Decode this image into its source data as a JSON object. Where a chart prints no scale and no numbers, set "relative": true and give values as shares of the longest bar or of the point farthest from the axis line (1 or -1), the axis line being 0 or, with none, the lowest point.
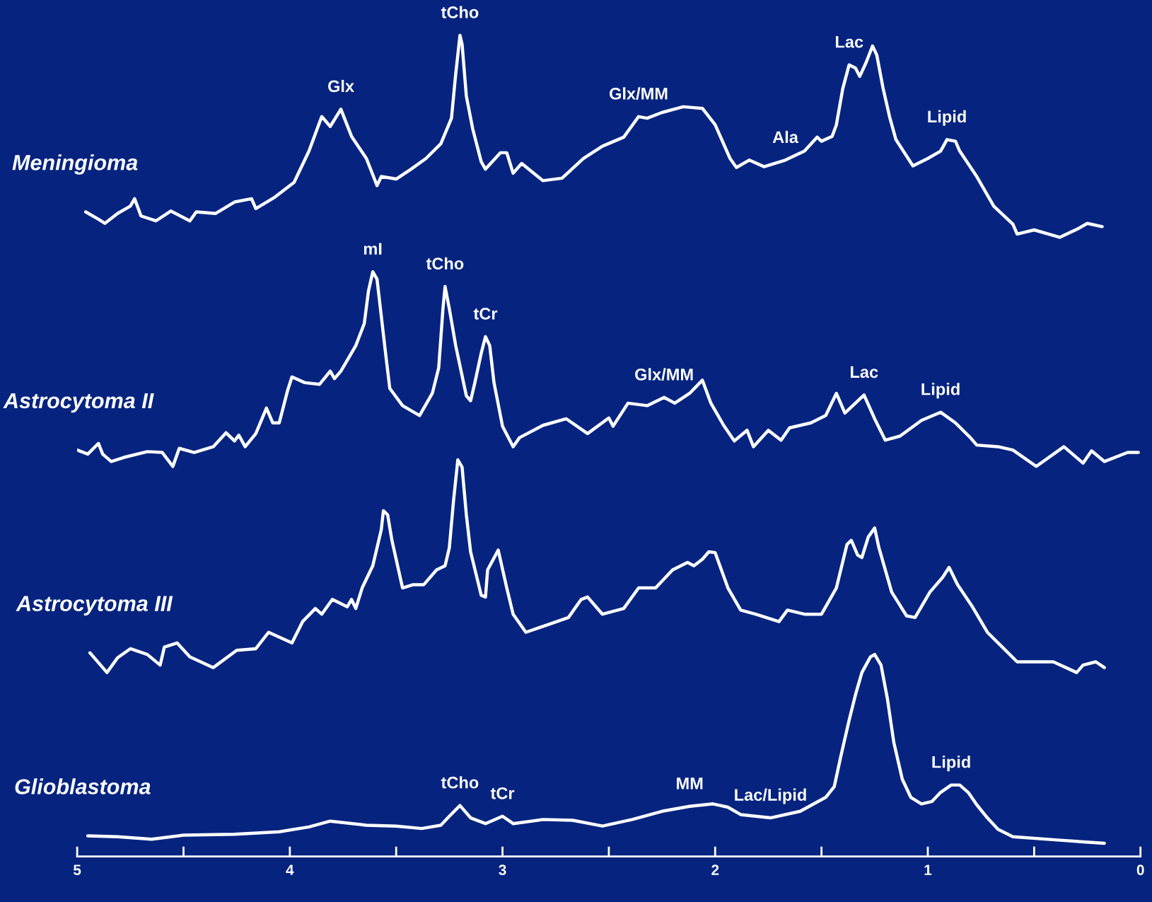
{
  "chart_data": {
    "type": "line",
    "relative": true,
    "line_style": "solid",
    "marker": "none",
    "grid": false,
    "legend": false,
    "xlim": [
      5,
      0
    ],
    "xticks": [
      5,
      {
        "value": 4.5,
        "label": null
      },
      4,
      {
        "value": 3.5,
        "label": null
      },
      3,
      {
        "value": 2.5,
        "label": null
      },
      2,
      {
        "value": 1.5,
        "label": null
      },
      1,
      {
        "value": 0.5,
        "label": null
      },
      0
    ],
    "series": [
      {
        "name": "Meningioma",
        "color": "#ffffff",
        "x": [
          4.96,
          4.9,
          4.87,
          4.81,
          4.75,
          4.73,
          4.7,
          4.63,
          4.56,
          4.47,
          4.44,
          4.35,
          4.26,
          4.18,
          4.16,
          4.07,
          3.98,
          3.91,
          3.85,
          3.81,
          3.76,
          3.71,
          3.64,
          3.59,
          3.57,
          3.5,
          3.43,
          3.36,
          3.29,
          3.24,
          3.22,
          3.2,
          3.19,
          3.17,
          3.14,
          3.1,
          3.08,
          3.01,
          2.98,
          2.95,
          2.91,
          2.81,
          2.72,
          2.62,
          2.53,
          2.43,
          2.36,
          2.32,
          2.25,
          2.15,
          2.06,
          2.0,
          1.93,
          1.9,
          1.84,
          1.77,
          1.67,
          1.58,
          1.52,
          1.5,
          1.45,
          1.43,
          1.4,
          1.37,
          1.34,
          1.32,
          1.29,
          1.26,
          1.24,
          1.21,
          1.18,
          1.15,
          1.07,
          1.0,
          0.94,
          0.91,
          0.87,
          0.85,
          0.77,
          0.69,
          0.6,
          0.58,
          0.5,
          0.38,
          0.29,
          0.25,
          0.18
        ],
        "values": [
          0.785,
          0.776,
          0.771,
          0.783,
          0.792,
          0.801,
          0.78,
          0.774,
          0.786,
          0.774,
          0.785,
          0.783,
          0.797,
          0.801,
          0.789,
          0.803,
          0.821,
          0.859,
          0.901,
          0.889,
          0.91,
          0.877,
          0.85,
          0.817,
          0.828,
          0.825,
          0.837,
          0.85,
          0.868,
          0.899,
          0.953,
          1,
          0.989,
          0.926,
          0.886,
          0.846,
          0.837,
          0.857,
          0.857,
          0.832,
          0.844,
          0.823,
          0.826,
          0.85,
          0.865,
          0.876,
          0.901,
          0.899,
          0.906,
          0.913,
          0.911,
          0.891,
          0.85,
          0.839,
          0.848,
          0.84,
          0.848,
          0.859,
          0.876,
          0.871,
          0.877,
          0.891,
          0.935,
          0.964,
          0.96,
          0.95,
          0.967,
          0.987,
          0.976,
          0.935,
          0.901,
          0.873,
          0.841,
          0.85,
          0.859,
          0.873,
          0.871,
          0.859,
          0.828,
          0.792,
          0.77,
          0.758,
          0.763,
          0.754,
          0.765,
          0.771,
          0.767
        ]
      },
      {
        "name": "Astrocytoma II",
        "color": "#ffffff",
        "x": [
          5.0,
          4.95,
          4.9,
          4.88,
          4.84,
          4.78,
          4.67,
          4.6,
          4.55,
          4.52,
          4.45,
          4.36,
          4.3,
          4.26,
          4.24,
          4.21,
          4.16,
          4.11,
          4.08,
          4.05,
          4.01,
          3.99,
          3.93,
          3.86,
          3.81,
          3.79,
          3.76,
          3.69,
          3.65,
          3.63,
          3.61,
          3.59,
          3.57,
          3.55,
          3.53,
          3.47,
          3.39,
          3.33,
          3.3,
          3.28,
          3.27,
          3.25,
          3.22,
          3.17,
          3.15,
          3.13,
          3.1,
          3.08,
          3.06,
          3.04,
          3.0,
          2.95,
          2.92,
          2.81,
          2.7,
          2.6,
          2.5,
          2.48,
          2.41,
          2.32,
          2.24,
          2.19,
          2.12,
          2.06,
          2.02,
          1.96,
          1.91,
          1.85,
          1.82,
          1.75,
          1.69,
          1.65,
          1.55,
          1.48,
          1.43,
          1.39,
          1.3,
          1.25,
          1.2,
          1.13,
          1.03,
          0.94,
          0.87,
          0.8,
          0.77,
          0.67,
          0.6,
          0.49,
          0.36,
          0.27,
          0.23,
          0.17,
          0.06,
          0.01
        ],
        "values": [
          0.495,
          0.49,
          0.503,
          0.49,
          0.481,
          0.486,
          0.493,
          0.492,
          0.475,
          0.497,
          0.492,
          0.499,
          0.516,
          0.506,
          0.513,
          0.499,
          0.515,
          0.546,
          0.528,
          0.528,
          0.568,
          0.584,
          0.577,
          0.575,
          0.591,
          0.582,
          0.591,
          0.622,
          0.649,
          0.689,
          0.712,
          0.703,
          0.658,
          0.613,
          0.57,
          0.549,
          0.537,
          0.564,
          0.595,
          0.667,
          0.694,
          0.667,
          0.622,
          0.561,
          0.555,
          0.577,
          0.613,
          0.633,
          0.622,
          0.577,
          0.524,
          0.499,
          0.51,
          0.525,
          0.533,
          0.515,
          0.534,
          0.524,
          0.552,
          0.549,
          0.559,
          0.552,
          0.564,
          0.58,
          0.552,
          0.525,
          0.506,
          0.519,
          0.499,
          0.519,
          0.507,
          0.522,
          0.528,
          0.537,
          0.564,
          0.54,
          0.562,
          0.533,
          0.507,
          0.512,
          0.531,
          0.541,
          0.528,
          0.51,
          0.501,
          0.499,
          0.495,
          0.475,
          0.499,
          0.479,
          0.494,
          0.481,
          0.492,
          0.492
        ]
      },
      {
        "name": "Astrocytoma III",
        "color": "#ffffff",
        "x": [
          4.94,
          4.89,
          4.86,
          4.81,
          4.75,
          4.67,
          4.61,
          4.59,
          4.53,
          4.47,
          4.36,
          4.25,
          4.16,
          4.1,
          3.99,
          3.94,
          3.88,
          3.85,
          3.8,
          3.73,
          3.71,
          3.69,
          3.66,
          3.61,
          3.57,
          3.56,
          3.54,
          3.52,
          3.47,
          3.42,
          3.37,
          3.31,
          3.27,
          3.25,
          3.23,
          3.21,
          3.19,
          3.17,
          3.15,
          3.1,
          3.08,
          3.07,
          3.02,
          2.98,
          2.95,
          2.89,
          2.79,
          2.69,
          2.63,
          2.6,
          2.53,
          2.43,
          2.36,
          2.28,
          2.2,
          2.13,
          2.1,
          2.06,
          2.03,
          2.0,
          1.94,
          1.88,
          1.81,
          1.7,
          1.66,
          1.58,
          1.5,
          1.43,
          1.38,
          1.36,
          1.33,
          1.31,
          1.28,
          1.25,
          1.23,
          1.17,
          1.1,
          1.06,
          0.99,
          0.93,
          0.9,
          0.86,
          0.79,
          0.72,
          0.65,
          0.58,
          0.51,
          0.41,
          0.3,
          0.27,
          0.21,
          0.17
        ],
        "values": [
          0.248,
          0.233,
          0.224,
          0.242,
          0.253,
          0.246,
          0.233,
          0.255,
          0.26,
          0.243,
          0.23,
          0.251,
          0.253,
          0.273,
          0.26,
          0.286,
          0.302,
          0.295,
          0.313,
          0.304,
          0.313,
          0.302,
          0.327,
          0.354,
          0.398,
          0.421,
          0.416,
          0.385,
          0.327,
          0.331,
          0.331,
          0.349,
          0.354,
          0.376,
          0.434,
          0.483,
          0.474,
          0.416,
          0.371,
          0.318,
          0.316,
          0.349,
          0.373,
          0.327,
          0.295,
          0.273,
          0.282,
          0.291,
          0.313,
          0.316,
          0.295,
          0.302,
          0.327,
          0.327,
          0.349,
          0.358,
          0.354,
          0.362,
          0.371,
          0.37,
          0.327,
          0.3,
          0.295,
          0.286,
          0.3,
          0.295,
          0.295,
          0.327,
          0.38,
          0.385,
          0.367,
          0.364,
          0.389,
          0.4,
          0.376,
          0.322,
          0.293,
          0.291,
          0.322,
          0.34,
          0.352,
          0.331,
          0.304,
          0.273,
          0.255,
          0.237,
          0.237,
          0.237,
          0.224,
          0.233,
          0.237,
          0.23
        ]
      },
      {
        "name": "Glioblastoma",
        "color": "#ffffff",
        "x": [
          4.95,
          4.81,
          4.65,
          4.5,
          4.26,
          4.05,
          3.91,
          3.81,
          3.64,
          3.5,
          3.38,
          3.29,
          3.25,
          3.2,
          3.15,
          3.08,
          3.0,
          2.95,
          2.81,
          2.67,
          2.53,
          2.39,
          2.25,
          2.12,
          2.01,
          1.94,
          1.88,
          1.74,
          1.6,
          1.48,
          1.44,
          1.41,
          1.37,
          1.34,
          1.31,
          1.27,
          1.25,
          1.22,
          1.19,
          1.16,
          1.12,
          1.08,
          1.03,
          0.98,
          0.94,
          0.89,
          0.85,
          0.81,
          0.77,
          0.72,
          0.67,
          0.6,
          0.39,
          0.17
        ],
        "values": [
          0.025,
          0.024,
          0.021,
          0.026,
          0.027,
          0.03,
          0.036,
          0.043,
          0.038,
          0.037,
          0.034,
          0.038,
          0.049,
          0.062,
          0.047,
          0.04,
          0.049,
          0.04,
          0.045,
          0.044,
          0.037,
          0.045,
          0.055,
          0.061,
          0.064,
          0.06,
          0.051,
          0.047,
          0.055,
          0.072,
          0.085,
          0.121,
          0.166,
          0.197,
          0.224,
          0.243,
          0.246,
          0.233,
          0.192,
          0.139,
          0.094,
          0.072,
          0.064,
          0.067,
          0.078,
          0.087,
          0.087,
          0.078,
          0.063,
          0.047,
          0.033,
          0.024,
          0.02,
          0.016
        ]
      }
    ],
    "annotations": [
      {
        "text": "Glx",
        "x": 3.76,
        "y": 0.91
      },
      {
        "text": "tCho",
        "x": 3.2,
        "y": 1
      },
      {
        "text": "Glx/MM",
        "x": 2.36,
        "y": 0.901
      },
      {
        "text": "Ala",
        "x": 1.67,
        "y": 0.848
      },
      {
        "text": "Lac",
        "x": 1.37,
        "y": 0.964
      },
      {
        "text": "Lipid",
        "x": 0.91,
        "y": 0.873
      },
      {
        "text": "mI",
        "x": 3.61,
        "y": 0.712
      },
      {
        "text": "tCho",
        "x": 3.27,
        "y": 0.694
      },
      {
        "text": "tCr",
        "x": 3.08,
        "y": 0.633
      },
      {
        "text": "Glx/MM",
        "x": 2.24,
        "y": 0.559
      },
      {
        "text": "Lac",
        "x": 1.3,
        "y": 0.562
      },
      {
        "text": "Lipid",
        "x": 0.94,
        "y": 0.541
      },
      {
        "text": "Lac/Lipid",
        "x": 1.74,
        "y": 0.047
      },
      {
        "text": "Lipid",
        "x": 0.89,
        "y": 0.087
      },
      {
        "text": "tCho",
        "x": 3.2,
        "y": 0.062
      },
      {
        "text": "tCr",
        "x": 3.0,
        "y": 0.049
      },
      {
        "text": "MM",
        "x": 2.12,
        "y": 0.061
      }
    ]
  }
}
